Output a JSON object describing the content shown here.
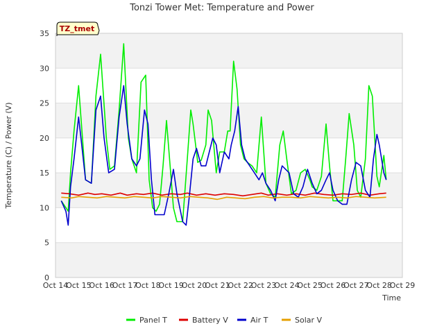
{
  "chart_data": {
    "type": "line",
    "title": "Tonzi Tower Met: Temperature and Power",
    "xlabel": "Time",
    "ylabel": "Temperature (C) / Power (V)",
    "ylim": [
      0,
      35
    ],
    "yticks": [
      0,
      5,
      10,
      15,
      20,
      25,
      30,
      35
    ],
    "xlim": [
      14,
      29
    ],
    "xticks": [
      {
        "x": 14,
        "label": "Oct 14"
      },
      {
        "x": 15,
        "label": "Oct 15"
      },
      {
        "x": 16,
        "label": "Oct 16"
      },
      {
        "x": 17,
        "label": "Oct 17"
      },
      {
        "x": 18,
        "label": "Oct 18"
      },
      {
        "x": 19,
        "label": "Oct 19"
      },
      {
        "x": 20,
        "label": "Oct 20"
      },
      {
        "x": 21,
        "label": "Oct 21"
      },
      {
        "x": 22,
        "label": "Oct 22"
      },
      {
        "x": 23,
        "label": "Oct 23"
      },
      {
        "x": 24,
        "label": "Oct 24"
      },
      {
        "x": 25,
        "label": "Oct 25"
      },
      {
        "x": 26,
        "label": "Oct 26"
      },
      {
        "x": 27,
        "label": "Oct 27"
      },
      {
        "x": 28,
        "label": "Oct 28"
      },
      {
        "x": 29,
        "label": "Oct 29"
      }
    ],
    "site_label": "TZ_tmet",
    "grid": true,
    "legend_position": "bottom",
    "series": [
      {
        "name": "Panel T",
        "color": "#00ee00",
        "x": [
          14.25,
          14.45,
          14.55,
          14.65,
          14.8,
          15.0,
          15.3,
          15.55,
          15.75,
          15.95,
          16.2,
          16.35,
          16.55,
          16.75,
          16.95,
          17.15,
          17.3,
          17.5,
          17.7,
          17.9,
          18.05,
          18.2,
          18.35,
          18.5,
          18.65,
          18.8,
          19.1,
          19.25,
          19.5,
          19.7,
          19.85,
          19.95,
          20.15,
          20.3,
          20.5,
          20.6,
          20.75,
          20.95,
          21.1,
          21.3,
          21.45,
          21.55,
          21.7,
          21.85,
          22.0,
          22.15,
          22.3,
          22.5,
          22.7,
          22.9,
          23.1,
          23.3,
          23.5,
          23.7,
          23.85,
          24.0,
          24.2,
          24.4,
          24.6,
          24.8,
          25.0,
          25.1,
          25.3,
          25.5,
          25.7,
          25.85,
          26.0,
          26.2,
          26.4,
          26.55,
          26.7,
          26.9,
          27.05,
          27.2,
          27.4,
          27.55,
          27.7,
          27.9,
          28.0,
          28.2,
          28.3
        ],
        "y": [
          11,
          10,
          9.5,
          15,
          21,
          27.5,
          14,
          13.5,
          26,
          32,
          20,
          15.5,
          16,
          24,
          33.5,
          20,
          17,
          15,
          28,
          29,
          14,
          10,
          9.5,
          10.5,
          16,
          22.5,
          10,
          8,
          8,
          17,
          24,
          22,
          16.5,
          16.8,
          19,
          24,
          22.5,
          15,
          18,
          18,
          21,
          21,
          31,
          27,
          19,
          17,
          16.5,
          16,
          15,
          23,
          13.5,
          12,
          11.5,
          19,
          21,
          17,
          12,
          12.5,
          15,
          15.5,
          14,
          13,
          12.5,
          14.5,
          22,
          16,
          11,
          11,
          11,
          17,
          23.5,
          19,
          12.5,
          11.5,
          17,
          27.5,
          26,
          14.5,
          13,
          17.5,
          14
        ]
      },
      {
        "name": "Battery V",
        "color": "#dd0000",
        "x": [
          14.25,
          14.6,
          15.0,
          15.4,
          15.7,
          16.0,
          16.4,
          16.8,
          17.1,
          17.5,
          17.8,
          18.2,
          18.6,
          19.0,
          19.4,
          19.7,
          20.1,
          20.5,
          20.9,
          21.3,
          21.7,
          22.1,
          22.5,
          22.9,
          23.2,
          23.6,
          24.0,
          24.4,
          24.8,
          25.2,
          25.6,
          26.0,
          26.4,
          26.8,
          27.2,
          27.6,
          28.0,
          28.3
        ],
        "y": [
          12.1,
          12.0,
          11.8,
          12.1,
          11.9,
          12.0,
          11.8,
          12.1,
          11.8,
          12.0,
          11.9,
          12.1,
          11.8,
          12.0,
          11.9,
          12.1,
          11.8,
          12.0,
          11.8,
          12.0,
          11.9,
          11.7,
          11.9,
          12.1,
          11.8,
          12.0,
          11.8,
          12.0,
          11.8,
          12.1,
          11.9,
          11.8,
          12.0,
          11.9,
          12.1,
          11.8,
          12.0,
          12.1
        ]
      },
      {
        "name": "Air T",
        "color": "#0000cc",
        "x": [
          14.25,
          14.45,
          14.55,
          14.65,
          14.8,
          15.0,
          15.1,
          15.3,
          15.55,
          15.75,
          15.95,
          16.1,
          16.3,
          16.55,
          16.75,
          16.95,
          17.1,
          17.3,
          17.5,
          17.65,
          17.85,
          18.0,
          18.15,
          18.3,
          18.5,
          18.7,
          18.9,
          19.1,
          19.25,
          19.5,
          19.65,
          19.8,
          19.95,
          20.1,
          20.3,
          20.5,
          20.65,
          20.8,
          20.95,
          21.1,
          21.3,
          21.5,
          21.6,
          21.75,
          21.9,
          22.05,
          22.2,
          22.4,
          22.6,
          22.8,
          22.95,
          23.1,
          23.3,
          23.5,
          23.65,
          23.8,
          23.95,
          24.1,
          24.3,
          24.5,
          24.7,
          24.9,
          25.1,
          25.3,
          25.5,
          25.7,
          25.85,
          26.0,
          26.2,
          26.4,
          26.6,
          26.8,
          27.0,
          27.2,
          27.4,
          27.6,
          27.75,
          27.9,
          28.0,
          28.2,
          28.3
        ],
        "y": [
          11,
          9.5,
          7.5,
          13,
          17,
          23,
          20,
          14,
          13.5,
          24,
          26,
          20,
          15,
          15.5,
          23,
          27.5,
          22,
          17,
          16,
          17,
          24,
          22,
          14,
          9,
          9,
          9,
          12,
          15.5,
          12,
          8,
          7.5,
          12,
          17,
          18.5,
          16,
          16,
          18,
          20,
          19,
          15,
          18,
          17,
          19,
          21,
          24.5,
          19,
          17,
          16,
          15,
          14,
          15,
          13.5,
          12.5,
          11,
          14,
          16,
          15.5,
          15,
          12,
          11.5,
          13,
          15.5,
          13.5,
          12,
          12.5,
          14,
          15,
          12.5,
          11,
          10.5,
          10.5,
          14,
          16.5,
          16,
          12.5,
          11.5,
          17,
          20.5,
          19,
          15,
          14
        ]
      },
      {
        "name": "Solar V",
        "color": "#e69f00",
        "x": [
          14.25,
          14.7,
          15.0,
          15.4,
          15.8,
          16.2,
          16.6,
          17.0,
          17.4,
          17.8,
          18.2,
          18.6,
          19.0,
          19.4,
          19.8,
          20.2,
          20.6,
          21.0,
          21.4,
          21.8,
          22.2,
          22.6,
          23.0,
          23.4,
          23.8,
          24.2,
          24.6,
          25.0,
          25.4,
          25.8,
          26.2,
          26.6,
          27.0,
          27.4,
          27.8,
          28.3
        ],
        "y": [
          11.5,
          11.4,
          11.6,
          11.5,
          11.4,
          11.6,
          11.5,
          11.4,
          11.6,
          11.5,
          11.4,
          11.6,
          11.5,
          11.4,
          11.6,
          11.5,
          11.4,
          11.2,
          11.5,
          11.4,
          11.3,
          11.5,
          11.6,
          11.4,
          11.5,
          11.5,
          11.4,
          11.6,
          11.5,
          11.4,
          11.5,
          11.4,
          11.6,
          11.5,
          11.4,
          11.5
        ]
      }
    ]
  }
}
